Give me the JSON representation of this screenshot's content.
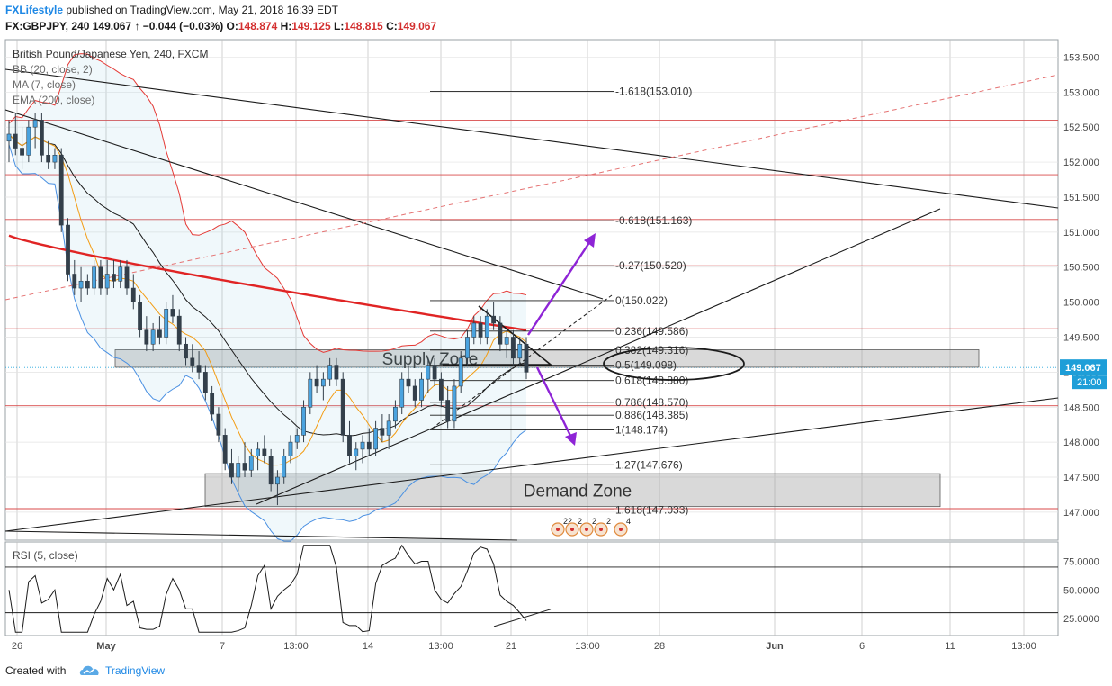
{
  "header": {
    "brand": "FXLifestyle",
    "published": "published on TradingView.com, May 21, 2018 16:39 EDT",
    "symbol": "FX:GBPJPY, 240",
    "last": "149.067",
    "change": "↑ −0.044 (−0.03%)",
    "ohlc": {
      "o": "148.874",
      "h": "149.125",
      "l": "148.815",
      "c": "149.067"
    }
  },
  "chart_data": {
    "type": "candlestick",
    "title": "British Pound/Japanese Yen, 240, FXCM",
    "indicators": [
      "BB (20, close, 2)",
      "MA (7, close)",
      "EMA (200, close)"
    ],
    "ylim": [
      146.6,
      153.75
    ],
    "y_ticks": [
      "153.500",
      "153.000",
      "152.500",
      "152.000",
      "151.500",
      "151.000",
      "150.500",
      "150.000",
      "149.500",
      "149.000",
      "148.500",
      "148.000",
      "147.500",
      "147.000"
    ],
    "x_ticks": [
      "26",
      "May",
      "7",
      "13:00",
      "14",
      "13:00",
      "21",
      "13:00",
      "28",
      "Jun",
      "6",
      "11",
      "13:00"
    ],
    "current_price": "149.067",
    "countdown": "21:00",
    "fibonacci": [
      {
        "label": "-1.618(153.010)",
        "level": 153.01
      },
      {
        "label": "-0.618(151.163)",
        "level": 151.163
      },
      {
        "label": "-0.27(150.520)",
        "level": 150.52
      },
      {
        "label": "0(150.022)",
        "level": 150.022
      },
      {
        "label": "0.236(149.586)",
        "level": 149.586
      },
      {
        "label": "0.382(149.316)",
        "level": 149.316
      },
      {
        "label": "0.5(149.098)",
        "level": 149.098
      },
      {
        "label": "0.618(148.880)",
        "level": 148.88
      },
      {
        "label": "0.786(148.570)",
        "level": 148.57
      },
      {
        "label": "0.886(148.385)",
        "level": 148.385
      },
      {
        "label": "1(148.174)",
        "level": 148.174
      },
      {
        "label": "1.27(147.676)",
        "level": 147.676
      },
      {
        "label": "1.618(147.033)",
        "level": 147.033
      }
    ],
    "horizontal_levels": [
      152.6,
      151.82,
      151.18,
      150.52,
      149.62,
      148.52,
      147.05
    ],
    "zones": [
      {
        "label": "Supply Zone",
        "top": 149.32,
        "bottom": 149.07
      },
      {
        "label": "Demand Zone",
        "top": 147.55,
        "bottom": 147.08
      }
    ],
    "event_markers": [
      "22",
      "2",
      "2",
      "2",
      "4"
    ],
    "candles": [
      [
        152.3,
        152.6,
        152.0,
        152.4
      ],
      [
        152.4,
        152.7,
        152.1,
        152.2
      ],
      [
        152.2,
        152.5,
        151.9,
        152.1
      ],
      [
        152.1,
        152.6,
        152.0,
        152.5
      ],
      [
        152.5,
        152.7,
        152.2,
        152.6
      ],
      [
        152.6,
        152.7,
        152.0,
        152.1
      ],
      [
        152.1,
        152.3,
        151.9,
        152.0
      ],
      [
        152.0,
        152.2,
        151.9,
        152.1
      ],
      [
        152.1,
        152.2,
        151.0,
        151.1
      ],
      [
        151.1,
        151.2,
        150.3,
        150.4
      ],
      [
        150.4,
        150.6,
        150.1,
        150.2
      ],
      [
        150.2,
        150.5,
        150.0,
        150.3
      ],
      [
        150.3,
        150.4,
        150.1,
        150.2
      ],
      [
        150.2,
        150.6,
        150.1,
        150.5
      ],
      [
        150.5,
        150.6,
        150.1,
        150.2
      ],
      [
        150.2,
        150.6,
        150.1,
        150.4
      ],
      [
        150.4,
        150.6,
        150.2,
        150.3
      ],
      [
        150.3,
        150.6,
        150.2,
        150.5
      ],
      [
        150.5,
        150.6,
        150.1,
        150.2
      ],
      [
        150.2,
        150.4,
        149.9,
        150.0
      ],
      [
        150.0,
        150.1,
        149.5,
        149.6
      ],
      [
        149.6,
        149.8,
        149.3,
        149.4
      ],
      [
        149.4,
        149.7,
        149.3,
        149.6
      ],
      [
        149.6,
        149.8,
        149.4,
        149.5
      ],
      [
        149.5,
        150.0,
        149.4,
        149.9
      ],
      [
        149.9,
        150.1,
        149.7,
        149.8
      ],
      [
        149.8,
        149.9,
        149.3,
        149.4
      ],
      [
        149.4,
        149.5,
        149.1,
        149.2
      ],
      [
        149.2,
        149.4,
        149.0,
        149.1
      ],
      [
        149.1,
        149.3,
        148.9,
        149.0
      ],
      [
        149.0,
        149.1,
        148.6,
        148.7
      ],
      [
        148.7,
        148.8,
        148.3,
        148.4
      ],
      [
        148.4,
        148.5,
        148.0,
        148.1
      ],
      [
        148.1,
        148.2,
        147.6,
        147.7
      ],
      [
        147.7,
        147.9,
        147.4,
        147.5
      ],
      [
        147.5,
        147.8,
        147.3,
        147.7
      ],
      [
        147.7,
        148.0,
        147.5,
        147.6
      ],
      [
        147.6,
        147.9,
        147.5,
        147.8
      ],
      [
        147.8,
        148.0,
        147.6,
        147.9
      ],
      [
        147.9,
        148.1,
        147.7,
        147.8
      ],
      [
        147.8,
        147.9,
        147.3,
        147.4
      ],
      [
        147.4,
        147.6,
        147.1,
        147.5
      ],
      [
        147.5,
        147.9,
        147.4,
        147.8
      ],
      [
        147.8,
        148.1,
        147.7,
        148.0
      ],
      [
        148.0,
        148.2,
        147.9,
        148.1
      ],
      [
        148.1,
        148.6,
        148.0,
        148.5
      ],
      [
        148.5,
        149.0,
        148.4,
        148.9
      ],
      [
        148.9,
        149.1,
        148.7,
        148.8
      ],
      [
        148.8,
        149.0,
        148.6,
        148.9
      ],
      [
        148.9,
        149.2,
        148.8,
        149.1
      ],
      [
        149.1,
        149.2,
        148.8,
        148.9
      ],
      [
        148.9,
        149.0,
        148.0,
        148.1
      ],
      [
        148.1,
        148.3,
        147.7,
        147.8
      ],
      [
        147.8,
        148.0,
        147.6,
        147.9
      ],
      [
        147.9,
        148.1,
        147.7,
        148.0
      ],
      [
        148.0,
        148.2,
        147.8,
        147.9
      ],
      [
        147.9,
        148.3,
        147.8,
        148.2
      ],
      [
        148.2,
        148.4,
        148.0,
        148.1
      ],
      [
        148.1,
        148.4,
        147.9,
        148.3
      ],
      [
        148.3,
        148.6,
        148.2,
        148.5
      ],
      [
        148.5,
        149.0,
        148.4,
        148.9
      ],
      [
        148.9,
        149.1,
        148.7,
        148.8
      ],
      [
        148.8,
        148.9,
        148.5,
        148.6
      ],
      [
        148.6,
        149.0,
        148.5,
        148.9
      ],
      [
        148.9,
        149.2,
        148.7,
        149.1
      ],
      [
        149.1,
        149.2,
        148.8,
        148.9
      ],
      [
        148.9,
        149.0,
        148.5,
        148.6
      ],
      [
        148.6,
        148.8,
        148.2,
        148.3
      ],
      [
        148.3,
        148.9,
        148.2,
        148.8
      ],
      [
        148.8,
        149.3,
        148.7,
        149.2
      ],
      [
        149.2,
        149.6,
        149.1,
        149.5
      ],
      [
        149.5,
        149.8,
        149.4,
        149.7
      ],
      [
        149.7,
        149.8,
        149.4,
        149.5
      ],
      [
        149.5,
        149.9,
        149.4,
        149.8
      ],
      [
        149.8,
        150.0,
        149.6,
        149.7
      ],
      [
        149.7,
        149.8,
        149.3,
        149.4
      ],
      [
        149.4,
        149.6,
        149.2,
        149.5
      ],
      [
        149.5,
        149.6,
        149.1,
        149.2
      ],
      [
        149.2,
        149.5,
        149.1,
        149.4
      ],
      [
        149.4,
        149.5,
        148.9,
        149.0
      ]
    ],
    "rsi": {
      "label": "RSI (5, close)",
      "ylim": [
        10,
        92
      ],
      "ticks": [
        "75.0000",
        "50.0000",
        "25.0000"
      ],
      "levels": [
        70,
        30
      ]
    }
  },
  "footer": {
    "created": "Created with",
    "brand": "TradingView"
  }
}
